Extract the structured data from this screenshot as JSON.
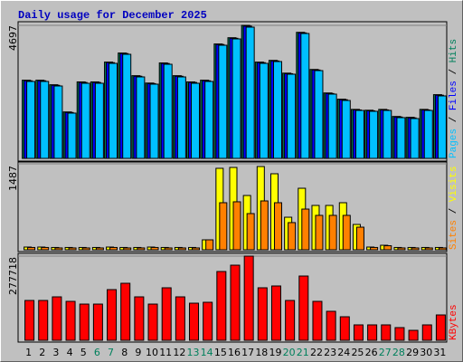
{
  "title": "Daily usage for December 2025",
  "legend_separator": " / ",
  "weekend_color": "#00805c",
  "weekend": [
    6,
    7,
    13,
    14,
    20,
    21,
    27,
    28
  ],
  "chart_data": [
    {
      "type": "bar",
      "ylim": [
        0,
        4697
      ],
      "yticks": [
        4697
      ],
      "series": [
        {
          "name": "Hits",
          "color": "#00805c",
          "values": [
            2760,
            2760,
            2600,
            1640,
            2700,
            2700,
            3400,
            3720,
            2920,
            2660,
            3370,
            2920,
            2700,
            2760,
            4040,
            4260,
            4697,
            3400,
            3460,
            3010,
            4450,
            3140,
            2310,
            2090,
            1730,
            1700,
            1730,
            1480,
            1450,
            1730,
            2250
          ]
        },
        {
          "name": "Files",
          "color": "#0000ff",
          "values": [
            2740,
            2740,
            2580,
            1620,
            2680,
            2680,
            3380,
            3700,
            2900,
            2640,
            3350,
            2900,
            2680,
            2740,
            4020,
            4240,
            4670,
            3380,
            3440,
            2990,
            4430,
            3120,
            2290,
            2070,
            1710,
            1680,
            1710,
            1460,
            1430,
            1710,
            2230
          ]
        },
        {
          "name": "Pages",
          "color": "#00c0ff",
          "values": [
            2716,
            2716,
            2556,
            1598,
            2652,
            2652,
            3355,
            3675,
            2876,
            2620,
            3323,
            2876,
            2652,
            2716,
            3994,
            4218,
            4633,
            3355,
            3419,
            2972,
            4409,
            3099,
            2269,
            2045,
            1693,
            1662,
            1693,
            1438,
            1406,
            1693,
            2205
          ]
        }
      ]
    },
    {
      "type": "bar",
      "ylim": [
        0,
        1487
      ],
      "yticks": [
        1487
      ],
      "series": [
        {
          "name": "Visits",
          "color": "#ffff00",
          "values": [
            47,
            47,
            40,
            40,
            40,
            40,
            47,
            40,
            40,
            47,
            40,
            40,
            40,
            172,
            1409,
            1424,
            939,
            1440,
            1315,
            563,
            1064,
            767,
            767,
            814,
            438,
            47,
            78,
            40,
            40,
            40,
            40
          ]
        },
        {
          "name": "Sites",
          "color": "#ff8000",
          "values": [
            40,
            40,
            32,
            32,
            32,
            32,
            40,
            32,
            32,
            40,
            32,
            32,
            32,
            172,
            814,
            830,
            626,
            845,
            814,
            470,
            704,
            595,
            595,
            595,
            391,
            40,
            70,
            32,
            32,
            32,
            32
          ]
        }
      ]
    },
    {
      "type": "bar",
      "ylim": [
        0,
        277718
      ],
      "yticks": [
        277718
      ],
      "categories": [
        "1",
        "2",
        "3",
        "4",
        "5",
        "6",
        "7",
        "8",
        "9",
        "10",
        "11",
        "12",
        "13",
        "14",
        "15",
        "16",
        "17",
        "18",
        "19",
        "20",
        "21",
        "22",
        "23",
        "24",
        "25",
        "26",
        "27",
        "28",
        "29",
        "30",
        "31"
      ],
      "series": [
        {
          "name": "KBytes",
          "color": "#ff0000",
          "values": [
            131400,
            131400,
            143300,
            128400,
            119400,
            119400,
            167200,
            188100,
            143300,
            119400,
            173200,
            143300,
            122400,
            125400,
            226900,
            247800,
            277718,
            173200,
            179200,
            131400,
            212000,
            128400,
            95600,
            77600,
            50800,
            50800,
            50800,
            41800,
            32800,
            50800,
            83600
          ]
        }
      ]
    }
  ]
}
